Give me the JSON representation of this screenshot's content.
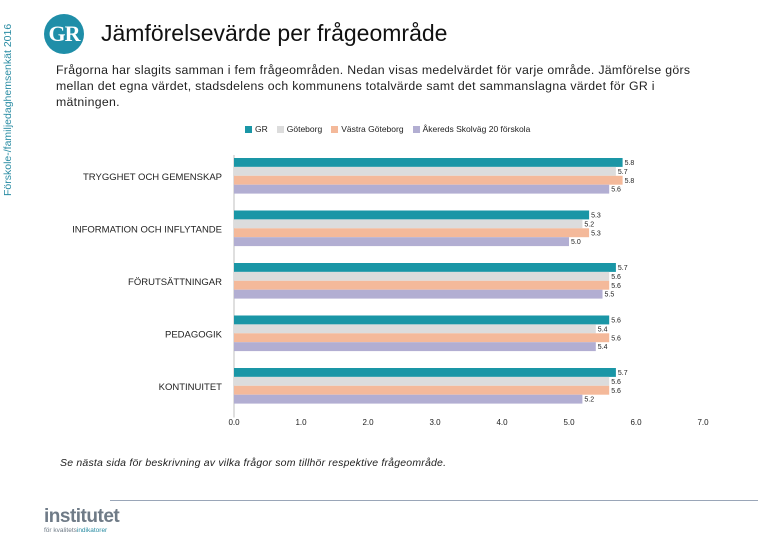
{
  "side_label": "Förskole-/familjedaghemsenkät 2016",
  "logo_text": "GR",
  "page_title": "Jämförelsevärde per frågeområde",
  "intro_text": "Frågorna har slagits samman i fem frågeområden. Nedan visas medelvärdet för varje område. Jämförelse görs mellan det egna värdet, stadsdelens och kommunens totalvärde samt det sammanslagna värdet för GR i mätningen.",
  "footnote": "Se nästa sida för beskrivning av vilka frågor som tillhör respektive frågeområde.",
  "brand": {
    "name": "institutet",
    "sub_prefix": "för kvalitets",
    "sub_highlight": "indikatorer"
  },
  "colors": {
    "GR": "#1a96a6",
    "Göteborg": "#dcdcdc",
    "Västra Göteborg": "#f4b99a",
    "Åkereds Skolväg 20 förskola": "#b2aed2"
  },
  "chart_data": {
    "type": "bar",
    "orientation": "horizontal",
    "categories": [
      "TRYGGHET OCH GEMENSKAP",
      "INFORMATION OCH INFLYTANDE",
      "FÖRUTSÄTTNINGAR",
      "PEDAGOGIK",
      "KONTINUITET"
    ],
    "series": [
      {
        "name": "GR",
        "values": [
          5.8,
          5.3,
          5.7,
          5.6,
          5.7
        ],
        "labels": [
          "5.8",
          "5.3",
          "5.7",
          "5.6",
          "5.7"
        ]
      },
      {
        "name": "Göteborg",
        "values": [
          5.7,
          5.2,
          5.6,
          5.4,
          5.6
        ],
        "labels": [
          "5.7",
          "5.2",
          "5.6",
          "5.4",
          "5.6"
        ]
      },
      {
        "name": "Västra Göteborg",
        "values": [
          5.8,
          5.3,
          5.6,
          5.6,
          5.6
        ],
        "labels": [
          "5.8",
          "5.3",
          "5.6",
          "5.6",
          "5.6"
        ]
      },
      {
        "name": "Åkereds Skolväg 20 förskola",
        "values": [
          5.6,
          5.0,
          5.5,
          5.4,
          5.2
        ],
        "labels": [
          "5.6",
          "5.0",
          "5.5",
          "5.4",
          "5.2"
        ]
      }
    ],
    "xlim": [
      0,
      7
    ],
    "xticks": [
      "0.0",
      "1.0",
      "2.0",
      "3.0",
      "4.0",
      "5.0",
      "6.0",
      "7.0"
    ],
    "legend_position": "top"
  }
}
